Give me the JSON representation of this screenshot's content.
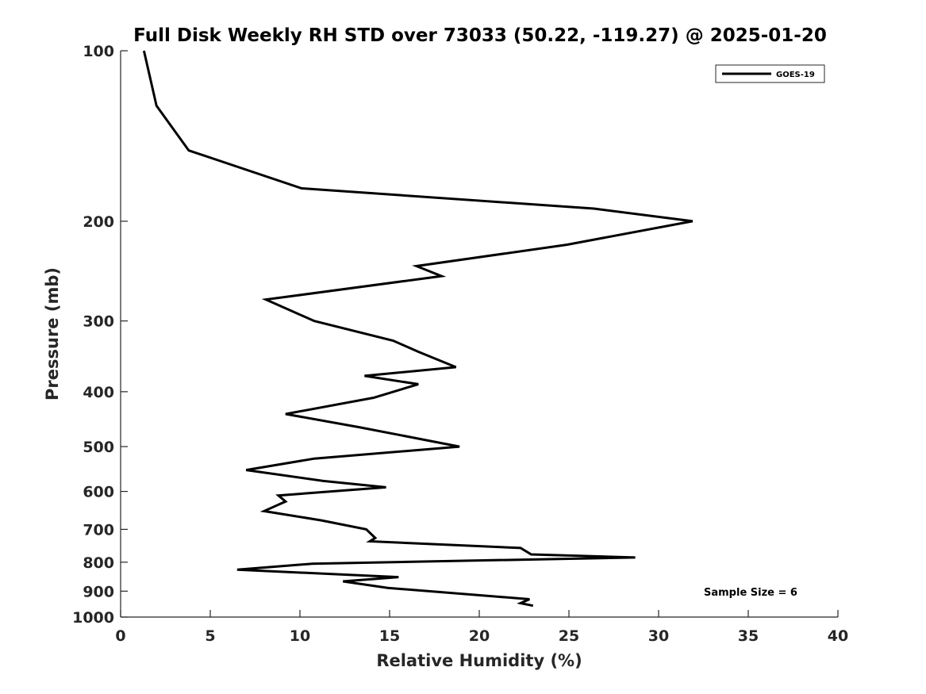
{
  "chart_data": {
    "type": "line",
    "title": "Full Disk Weekly RH STD over 73033 (50.22, -119.27) @ 2025-01-20",
    "xlabel": "Relative Humidity (%)",
    "ylabel": "Pressure (mb)",
    "xlim": [
      0,
      40
    ],
    "ylim": [
      1000,
      100
    ],
    "yscale": "log",
    "x_ticks": [
      0,
      5,
      10,
      15,
      20,
      25,
      30,
      35,
      40
    ],
    "x_tick_labels": [
      "0",
      "5",
      "10",
      "15",
      "20",
      "25",
      "30",
      "35",
      "40"
    ],
    "y_ticks": [
      100,
      200,
      300,
      400,
      500,
      600,
      700,
      800,
      900,
      1000
    ],
    "y_tick_labels": [
      "100",
      "200",
      "300",
      "400",
      "500",
      "600",
      "700",
      "800",
      "900",
      "1000"
    ],
    "grid": false,
    "legend_position": "top-right",
    "series": [
      {
        "name": "GOES-19",
        "color": "#000000",
        "x": [
          1.3,
          2.0,
          3.8,
          10.1,
          26.4,
          31.9,
          24.9,
          16.5,
          17.9,
          8.1,
          10.8,
          15.2,
          16.6,
          18.7,
          13.6,
          16.6,
          14.1,
          9.2,
          13.3,
          18.9,
          10.8,
          7.0,
          11.3,
          14.8,
          8.8,
          9.2,
          8.0,
          11.2,
          13.7,
          14.2,
          13.9,
          22.3,
          22.9,
          28.7,
          10.7,
          6.5,
          15.5,
          12.4,
          14.9,
          22.8,
          22.3,
          23.0
        ],
        "y": [
          100,
          125,
          150,
          175,
          190,
          200,
          220,
          240,
          250,
          275,
          300,
          325,
          340,
          362,
          375,
          388,
          410,
          438,
          462,
          500,
          525,
          550,
          575,
          590,
          610,
          625,
          650,
          675,
          700,
          725,
          735,
          755,
          775,
          785,
          805,
          825,
          850,
          865,
          888,
          930,
          945,
          955
        ]
      }
    ],
    "annotations": [
      "Sample Size = 6"
    ]
  }
}
